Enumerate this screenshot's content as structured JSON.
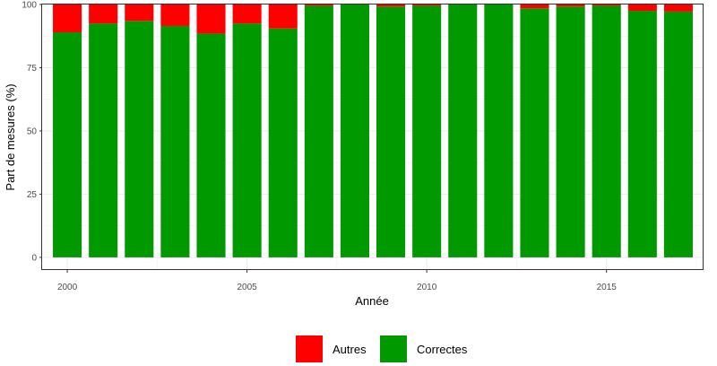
{
  "chart_data": {
    "type": "bar",
    "stacked": true,
    "xlabel": "Année",
    "ylabel": "Part de mesures (%)",
    "x": [
      2000,
      2001,
      2002,
      2003,
      2004,
      2005,
      2006,
      2007,
      2008,
      2009,
      2010,
      2011,
      2012,
      2013,
      2014,
      2015,
      2016,
      2017
    ],
    "series": [
      {
        "name": "Correctes",
        "color": "#009900",
        "values": [
          89,
          92.5,
          93.5,
          91.5,
          88.5,
          92.5,
          90.5,
          99.5,
          100,
          99.2,
          99.5,
          100,
          100,
          98.5,
          99.2,
          99.5,
          97.5,
          97.2
        ]
      },
      {
        "name": "Autres",
        "color": "#ff0000",
        "values": [
          11,
          7.5,
          6.5,
          8.5,
          11.5,
          7.5,
          9.5,
          0.5,
          0,
          0.8,
          0.5,
          0,
          0,
          1.5,
          0.8,
          0.5,
          2.5,
          2.8
        ]
      }
    ],
    "xticks": [
      2000,
      2005,
      2010,
      2015
    ],
    "yticks": [
      0,
      25,
      50,
      75,
      100
    ],
    "xlim": [
      1999.3,
      2017.7
    ],
    "ylim": [
      -5,
      100
    ],
    "grid": true,
    "legend_position": "bottom",
    "legend_order": [
      "Autres",
      "Correctes"
    ]
  }
}
